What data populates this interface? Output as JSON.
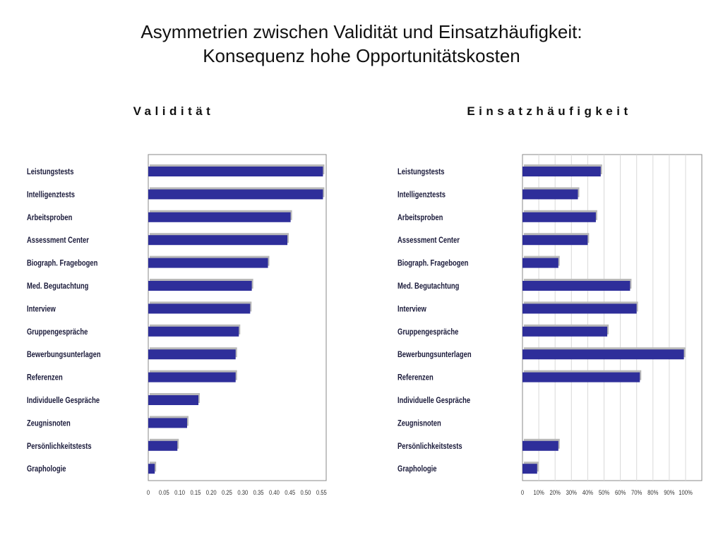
{
  "slide": {
    "title_line1": "Asymmetrien zwischen Validität und Einsatzhäufigkeit:",
    "title_line2": "Konsequenz hohe Opportunitätskosten"
  },
  "chart_data": [
    {
      "type": "bar",
      "orientation": "horizontal",
      "title": "Validität",
      "categories": [
        "Leistungstests",
        "Intelligenztests",
        "Arbeitsproben",
        "Assessment Center",
        "Biograph. Fragebogen",
        "Med. Begutachtung",
        "Interview",
        "Gruppengespräche",
        "Bewerbungsunterlagen",
        "Referenzen",
        "Individuelle Gespräche",
        "Zeugnisnoten",
        "Persönlichkeitstests",
        "Graphologie"
      ],
      "values": [
        0.54,
        0.54,
        0.44,
        0.43,
        0.37,
        0.32,
        0.315,
        0.28,
        0.27,
        0.27,
        0.155,
        0.12,
        0.09,
        0.02
      ],
      "xlim": [
        0,
        0.55
      ],
      "xticks": [
        "0",
        "0.05",
        "0.10",
        "0.15",
        "0.20",
        "0.25",
        "0.30",
        "0.35",
        "0.40",
        "0.45",
        "0.50",
        "0.55"
      ],
      "grid": false,
      "colors": {
        "bar": "#2e2e9a",
        "shadow": "#b8b8b8",
        "frame": "#888888"
      }
    },
    {
      "type": "bar",
      "orientation": "horizontal",
      "title": "Einsatzhäufigkeit",
      "categories": [
        "Leistungstests",
        "Intelligenztests",
        "Arbeitsproben",
        "Assessment Center",
        "Biograph. Fragebogen",
        "Med. Begutachtung",
        "Interview",
        "Gruppengespräche",
        "Bewerbungsunterlagen",
        "Referenzen",
        "Individuelle Gespräche",
        "Zeugnisnoten",
        "Persönlichkeitstests",
        "Graphologie"
      ],
      "values": [
        0.48,
        0.34,
        0.45,
        0.4,
        0.22,
        0.66,
        0.7,
        0.52,
        0.99,
        0.72,
        null,
        null,
        0.22,
        0.09
      ],
      "xlim": [
        0,
        1.1
      ],
      "xticks": [
        "0",
        "10%",
        "20%",
        "30%",
        "40%",
        "50%",
        "60%",
        "70%",
        "80%",
        "90%",
        "100%"
      ],
      "grid": true,
      "colors": {
        "bar": "#2e2e9a",
        "shadow": "#b8b8b8",
        "frame": "#888888",
        "grid": "#d8d8d8"
      }
    }
  ]
}
